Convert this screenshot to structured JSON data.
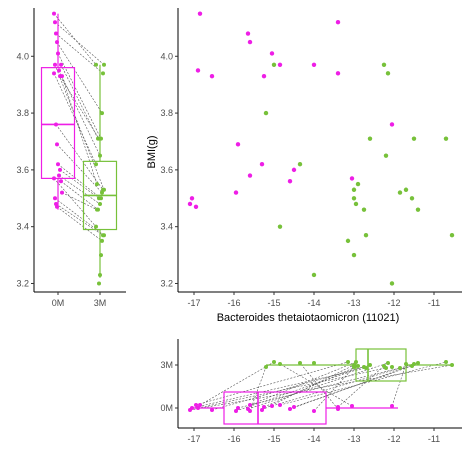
{
  "colors": {
    "group_0M": "#ee1ee6",
    "group_3M": "#77c13a",
    "pair_line": "#555555",
    "axis": "#000000"
  },
  "chart_data": [
    {
      "id": "boxplot_y",
      "type": "box",
      "categories": [
        "0M",
        "3M"
      ],
      "ylim": [
        3.17,
        4.17
      ],
      "yticks": [
        "3.2",
        "3.4",
        "3.6",
        "3.8",
        "4.0"
      ],
      "ytick_values": [
        3.2,
        3.4,
        3.6,
        3.8,
        4.0
      ],
      "boxes": [
        {
          "category": "0M",
          "q1": 3.57,
          "median": 3.76,
          "q3": 3.96,
          "whisker_low": 3.46,
          "whisker_high": 4.15
        },
        {
          "category": "3M",
          "q1": 3.39,
          "median": 3.51,
          "q3": 3.63,
          "whisker_low": 3.22,
          "whisker_high": 3.97
        }
      ]
    },
    {
      "id": "scatter",
      "type": "scatter",
      "xlabel": "Bacteroides thetaiotaomicron (11021)",
      "ylabel": "BMI(g)",
      "xlim": [
        -17.4,
        -10.3
      ],
      "ylim": [
        3.17,
        4.17
      ],
      "xticks": [
        "-17",
        "-16",
        "-15",
        "-14",
        "-13",
        "-12",
        "-11"
      ],
      "xtick_values": [
        -17,
        -16,
        -15,
        -14,
        -13,
        -12,
        -11
      ],
      "yticks": [
        "3.2",
        "3.4",
        "3.6",
        "3.8",
        "4.0"
      ],
      "ytick_values": [
        3.2,
        3.4,
        3.6,
        3.8,
        4.0
      ],
      "series": [
        {
          "group": "0M",
          "points": [
            [
              -16.85,
              4.15
            ],
            [
              -13.4,
              4.12
            ],
            [
              -15.65,
              4.08
            ],
            [
              -15.6,
              4.05
            ],
            [
              -15.05,
              4.01
            ],
            [
              -16.9,
              3.95
            ],
            [
              -16.55,
              3.93
            ],
            [
              -14.85,
              3.97
            ],
            [
              -15.25,
              3.93
            ],
            [
              -13.4,
              3.94
            ],
            [
              -14.0,
              3.97
            ],
            [
              -12.05,
              3.76
            ],
            [
              -15.9,
              3.69
            ],
            [
              -15.3,
              3.62
            ],
            [
              -15.6,
              3.58
            ],
            [
              -14.5,
              3.6
            ],
            [
              -14.6,
              3.56
            ],
            [
              -15.95,
              3.52
            ],
            [
              -13.05,
              3.57
            ],
            [
              -17.05,
              3.5
            ],
            [
              -17.1,
              3.48
            ],
            [
              -16.95,
              3.47
            ]
          ]
        },
        {
          "group": "3M",
          "points": [
            [
              -15.0,
              3.97
            ],
            [
              -12.25,
              3.97
            ],
            [
              -12.15,
              3.94
            ],
            [
              -15.2,
              3.8
            ],
            [
              -11.5,
              3.71
            ],
            [
              -12.2,
              3.65
            ],
            [
              -12.6,
              3.71
            ],
            [
              -10.7,
              3.71
            ],
            [
              -12.9,
              3.55
            ],
            [
              -14.35,
              3.62
            ],
            [
              -13.0,
              3.53
            ],
            [
              -11.7,
              3.53
            ],
            [
              -11.85,
              3.52
            ],
            [
              -13.0,
              3.5
            ],
            [
              -12.95,
              3.48
            ],
            [
              -11.55,
              3.5
            ],
            [
              -11.4,
              3.46
            ],
            [
              -12.75,
              3.46
            ],
            [
              -14.85,
              3.4
            ],
            [
              -12.7,
              3.37
            ],
            [
              -10.55,
              3.37
            ],
            [
              -13.15,
              3.35
            ],
            [
              -13.0,
              3.3
            ],
            [
              -14.0,
              3.23
            ],
            [
              -12.05,
              3.2
            ]
          ]
        }
      ]
    },
    {
      "id": "boxplot_x",
      "type": "box_horizontal",
      "categories": [
        "0M",
        "3M"
      ],
      "xlim": [
        -17.4,
        -10.3
      ],
      "xticks": [
        "-17",
        "-16",
        "-15",
        "-14",
        "-13",
        "-12",
        "-11"
      ],
      "xtick_values": [
        -17,
        -16,
        -15,
        -14,
        -13,
        -12,
        -11
      ],
      "boxes": [
        {
          "category": "0M",
          "q1": -16.25,
          "median": -15.4,
          "q3": -13.7,
          "whisker_low": -17.1,
          "whisker_high": -11.9
        },
        {
          "category": "3M",
          "q1": -12.95,
          "median": -12.65,
          "q3": -11.7,
          "whisker_low": -15.2,
          "whisker_high": -10.55
        }
      ]
    }
  ]
}
